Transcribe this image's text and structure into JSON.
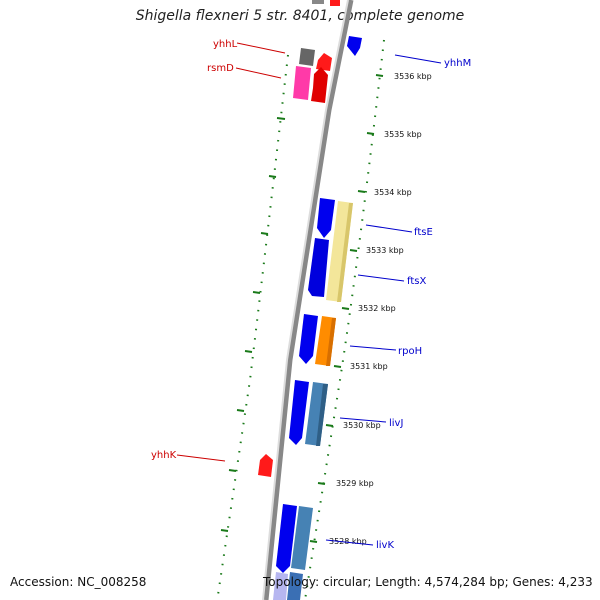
{
  "title": "Shigella flexneri 5 str. 8401, complete genome",
  "accession": "Accession: NC_008258",
  "stats": "Topology: circular; Length: 4,574,284 bp; Genes: 4,233",
  "tick_labels": [
    "3536 kbp",
    "3535 kbp",
    "3534 kbp",
    "3533 kbp",
    "3532 kbp",
    "3531 kbp",
    "3530 kbp",
    "3529 kbp",
    "3528 kbp"
  ],
  "genes": [
    {
      "name": "yhhL",
      "strand": "reverse",
      "label_color": "#cc0000",
      "fill": "#d40000"
    },
    {
      "name": "rsmD",
      "strand": "reverse",
      "label_color": "#cc0000",
      "fill": "#ff1a1a"
    },
    {
      "name": "yhhM",
      "strand": "forward",
      "label_color": "#0000cc",
      "fill": "#0000ee"
    },
    {
      "name": "ftsE",
      "strand": "forward",
      "label_color": "#0000cc",
      "fill": "#f3e69a"
    },
    {
      "name": "ftsX",
      "strand": "forward",
      "label_color": "#0000cc",
      "fill": "#f3e69a"
    },
    {
      "name": "rpoH",
      "strand": "forward",
      "label_color": "#0000cc",
      "fill": "#ff8c00"
    },
    {
      "name": "livJ",
      "strand": "forward",
      "label_color": "#0000cc",
      "fill": "#4682b4"
    },
    {
      "name": "yhhK",
      "strand": "reverse",
      "label_color": "#cc0000",
      "fill": "#ff1a1a"
    },
    {
      "name": "livK",
      "strand": "forward",
      "label_color": "#0000cc",
      "fill": "#4682b4"
    }
  ],
  "colors": {
    "backbone": "#777777",
    "tick_track": "#1a7a1a",
    "forward_label": "#0000cc",
    "reverse_label": "#cc0000",
    "cds": "#0000ee",
    "pink": "#ff3aa8"
  }
}
